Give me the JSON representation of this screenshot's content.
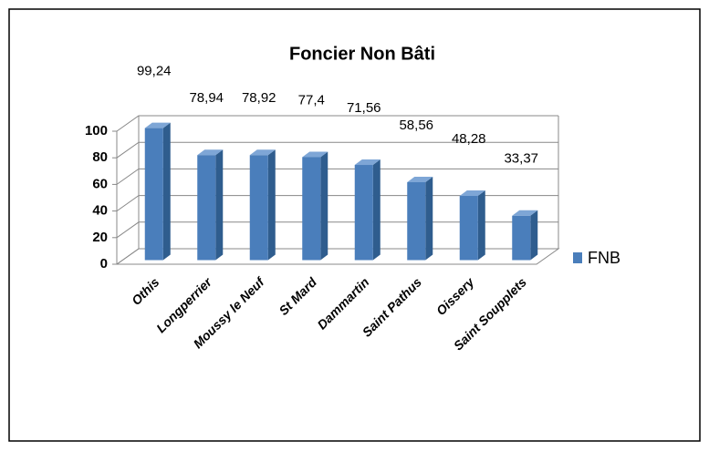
{
  "chart_data": {
    "type": "bar",
    "title": "Foncier Non Bâti",
    "categories": [
      "Othis",
      "Longperrier",
      "Moussy le Neuf",
      "St Mard",
      "Dammartin",
      "Saint Pathus",
      "Oissery",
      "Saint Soupplets"
    ],
    "series": [
      {
        "name": "FNB",
        "color": "#4a7ebb",
        "values": [
          99.24,
          78.94,
          78.92,
          77.4,
          71.56,
          58.56,
          48.28,
          33.37
        ],
        "value_labels": [
          "99,24",
          "78,94",
          "78,92",
          "77,4",
          "71,56",
          "58,56",
          "48,28",
          "33,37"
        ]
      }
    ],
    "ylim": [
      0,
      100
    ],
    "yticks": [
      0,
      20,
      40,
      60,
      80,
      100
    ],
    "grid": true,
    "legend": "right"
  }
}
